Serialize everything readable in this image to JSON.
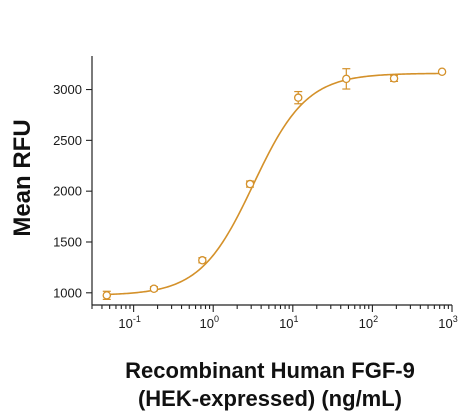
{
  "chart_data": {
    "type": "scatter",
    "title": "",
    "xlabel_line1": "Recombinant Human FGF-9",
    "xlabel_line2": "(HEK-expressed) (ng/mL)",
    "ylabel": "Mean RFU",
    "xscale": "log",
    "xlim": [
      0.03,
      1000
    ],
    "ylim": [
      880,
      3330
    ],
    "yticks": [
      1000,
      1500,
      2000,
      2500,
      3000
    ],
    "xticks": [
      {
        "value": 0.1,
        "base": "10",
        "exp": "-1"
      },
      {
        "value": 1,
        "base": "10",
        "exp": "0"
      },
      {
        "value": 10,
        "base": "10",
        "exp": "1"
      },
      {
        "value": 100,
        "base": "10",
        "exp": "2"
      },
      {
        "value": 1000,
        "base": "10",
        "exp": "3"
      }
    ],
    "series": [
      {
        "x": [
          0.046,
          0.18,
          0.73,
          2.9,
          11.7,
          47,
          187,
          750
        ],
        "y": [
          975,
          1040,
          1320,
          2070,
          2920,
          3105,
          3110,
          3175
        ],
        "error": [
          40,
          20,
          25,
          30,
          60,
          100,
          30,
          0
        ],
        "fit": {
          "bottom": 975,
          "top": 3160,
          "ec50": 3.2,
          "hill": 1.3
        },
        "color": "#d4912a"
      }
    ],
    "grid": false,
    "legend": "none"
  }
}
